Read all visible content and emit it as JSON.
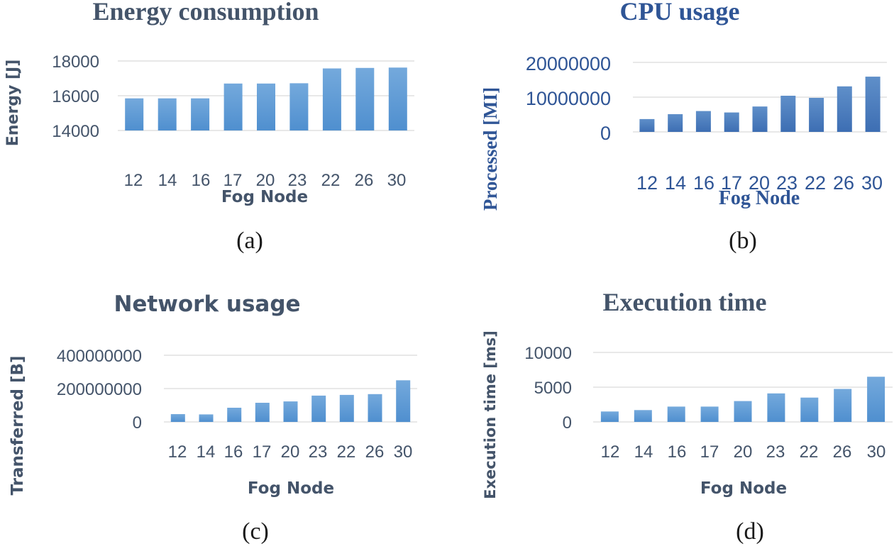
{
  "chart_data": [
    {
      "type": "bar",
      "panel": "a",
      "title": "Energy consumption",
      "xlabel": "Fog Node",
      "ylabel": "Energy [J]",
      "caption": "(a)",
      "categories": [
        "12",
        "14",
        "16",
        "17",
        "20",
        "23",
        "22",
        "26",
        "30"
      ],
      "values": [
        15850,
        15850,
        15850,
        16700,
        16700,
        16720,
        17570,
        17600,
        17620
      ],
      "ylim": [
        14000,
        18000
      ],
      "yticks": [
        "14000",
        "16000",
        "18000"
      ],
      "grid": true,
      "colors": {
        "bar_top": "#74a9dc",
        "bar_bottom": "#4f8fcf",
        "text": "#44546a",
        "grid": "#d9d9d9"
      }
    },
    {
      "type": "bar",
      "panel": "b",
      "title": "CPU usage",
      "xlabel": "Fog Node",
      "ylabel": "Processed [MI]",
      "caption": "(b)",
      "categories": [
        "12",
        "14",
        "16",
        "17",
        "20",
        "23",
        "22",
        "26",
        "30"
      ],
      "values": [
        3700000,
        5100000,
        6000000,
        5600000,
        7300000,
        10400000,
        9800000,
        13100000,
        15900000
      ],
      "ylim": [
        0,
        20000000
      ],
      "yticks": [
        "0",
        "10000000",
        "20000000"
      ],
      "grid": true,
      "colors": {
        "bar_top": "#5f8fc9",
        "bar_bottom": "#3d6eb3",
        "text": "#2f5596",
        "grid": "#d9d9d9"
      }
    },
    {
      "type": "bar",
      "panel": "c",
      "title": "Network usage",
      "xlabel": "Fog Node",
      "ylabel": "Transferred [B]",
      "caption": "(c)",
      "categories": [
        "12",
        "14",
        "16",
        "17",
        "20",
        "23",
        "22",
        "26",
        "30"
      ],
      "values": [
        47000000,
        45000000,
        85000000,
        115000000,
        123000000,
        158000000,
        162000000,
        167000000,
        250000000
      ],
      "ylim": [
        0,
        400000000
      ],
      "yticks": [
        "0",
        "200000000",
        "400000000"
      ],
      "grid": true,
      "colors": {
        "bar_top": "#74a9dc",
        "bar_bottom": "#4f8fcf",
        "text": "#44546a",
        "grid": "#d9d9d9"
      }
    },
    {
      "type": "bar",
      "panel": "d",
      "title": "Execution time",
      "xlabel": "Fog Node",
      "ylabel": "Execution time [ms]",
      "caption": "(d)",
      "categories": [
        "12",
        "14",
        "16",
        "17",
        "20",
        "23",
        "22",
        "26",
        "30"
      ],
      "values": [
        1500,
        1700,
        2200,
        2200,
        3000,
        4100,
        3500,
        4750,
        6500
      ],
      "ylim": [
        0,
        10000
      ],
      "yticks": [
        "0",
        "5000",
        "10000"
      ],
      "grid": true,
      "colors": {
        "bar_top": "#74a9dc",
        "bar_bottom": "#4f8fcf",
        "text": "#44546a",
        "grid": "#d9d9d9"
      }
    }
  ]
}
